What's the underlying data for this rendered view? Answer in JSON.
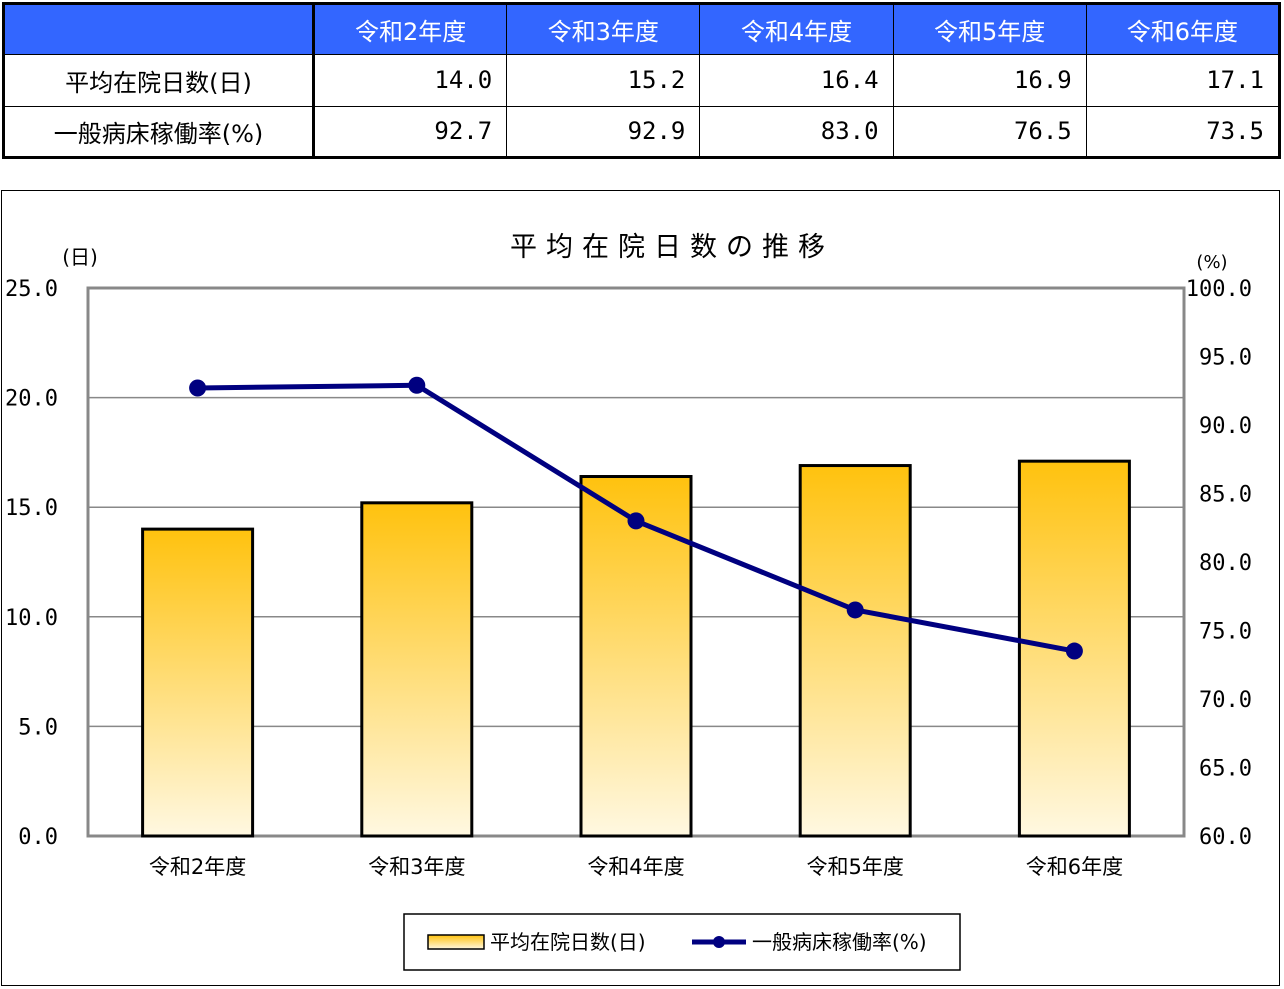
{
  "table": {
    "corner": "",
    "headers": [
      "令和2年度",
      "令和3年度",
      "令和4年度",
      "令和5年度",
      "令和6年度"
    ],
    "rows": [
      {
        "label": "平均在院日数(日)",
        "values": [
          "14.0",
          "15.2",
          "16.4",
          "16.9",
          "17.1"
        ]
      },
      {
        "label": "一般病床稼働率(%)",
        "values": [
          "92.7",
          "92.9",
          "83.0",
          "76.5",
          "73.5"
        ]
      }
    ]
  },
  "chart_data": {
    "type": "bar",
    "title": "平均在院日数の推移",
    "categories": [
      "令和2年度",
      "令和3年度",
      "令和4年度",
      "令和5年度",
      "令和6年度"
    ],
    "series": [
      {
        "name": "平均在院日数(日)",
        "type": "bar",
        "axis": "left",
        "values": [
          14.0,
          15.2,
          16.4,
          16.9,
          17.1
        ]
      },
      {
        "name": "一般病床稼働率(%)",
        "type": "line",
        "axis": "right",
        "values": [
          92.7,
          92.9,
          83.0,
          76.5,
          73.5
        ]
      }
    ],
    "y_left": {
      "unit": "(日)",
      "range": [
        0,
        25
      ],
      "ticks": [
        "0.0",
        "5.0",
        "10.0",
        "15.0",
        "20.0",
        "25.0"
      ]
    },
    "y_right": {
      "unit": "(%)",
      "range": [
        60,
        100
      ],
      "ticks": [
        "60.0",
        "65.0",
        "70.0",
        "75.0",
        "80.0",
        "85.0",
        "90.0",
        "95.0",
        "100.0"
      ]
    },
    "grid": true,
    "legend": "bottom",
    "colors": {
      "bar_top": "#ffc20e",
      "bar_bottom": "#fff8e1",
      "line": "#000080",
      "plot_bg": "#ffffff"
    }
  }
}
